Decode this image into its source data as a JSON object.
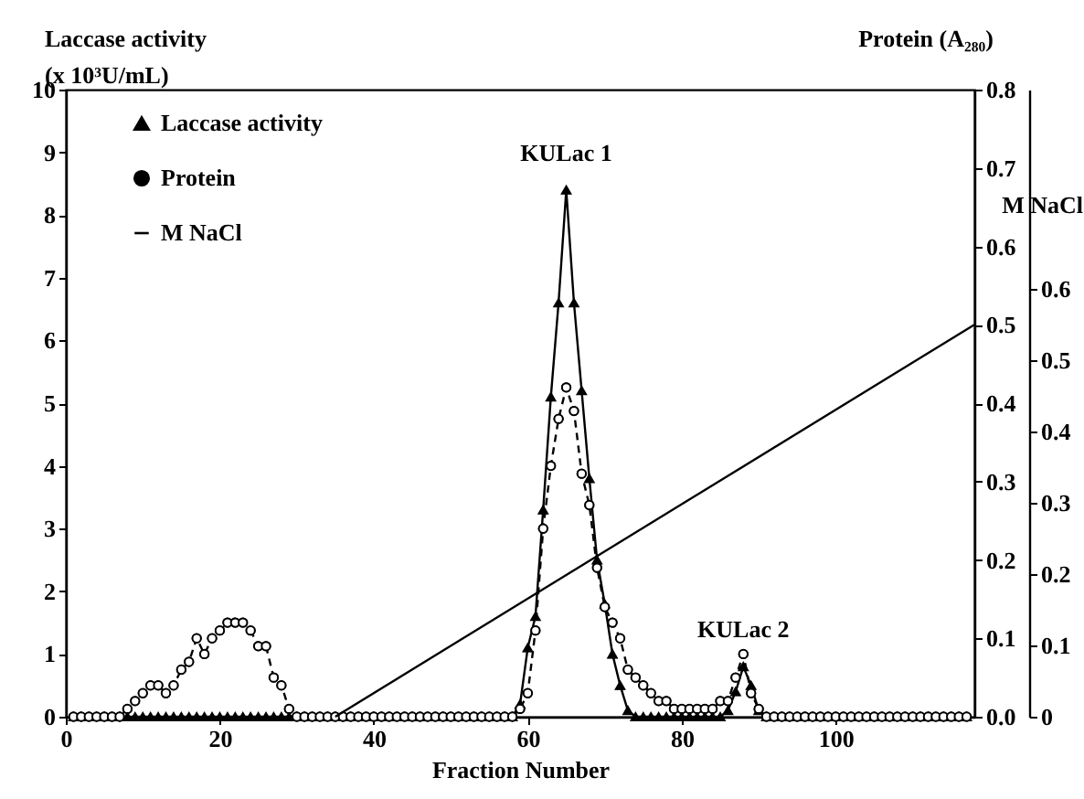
{
  "chart_data": {
    "type": "line",
    "xlabel": "Fraction Number",
    "ylabel": "Laccase activity\n(x 10³U/mL)",
    "y2label": "Protein (A₂₈₀)",
    "y3label": "M  NaCl",
    "xlim": [
      0,
      118
    ],
    "xticks": [
      0,
      20,
      40,
      60,
      80,
      100
    ],
    "ylim": [
      0,
      10
    ],
    "yticks": [
      0,
      1,
      2,
      3,
      4,
      5,
      6,
      7,
      8,
      9,
      10
    ],
    "y2lim": [
      0,
      0.8
    ],
    "y2ticks": [
      {
        "value": 0,
        "label": "0.0"
      },
      0.1,
      0.2,
      0.3,
      0.4,
      0.5,
      0.6,
      0.7,
      0.8
    ],
    "y3lim": [
      0,
      0.88
    ],
    "y3ticks": [
      0,
      0.1,
      0.2,
      0.3,
      0.4,
      0.5,
      0.6
    ],
    "grid": false,
    "legend": "top left",
    "annotations": [
      {
        "text": "KULac 1",
        "x": 65,
        "y": 8.4
      },
      {
        "text": "KULac 2",
        "x": 88,
        "y": 0.8
      }
    ],
    "x": [
      1,
      2,
      3,
      4,
      5,
      6,
      7,
      8,
      9,
      10,
      11,
      12,
      13,
      14,
      15,
      16,
      17,
      18,
      19,
      20,
      21,
      22,
      23,
      24,
      25,
      26,
      27,
      28,
      29,
      30,
      31,
      32,
      33,
      34,
      35,
      36,
      37,
      38,
      39,
      40,
      41,
      42,
      43,
      44,
      45,
      46,
      47,
      48,
      49,
      50,
      51,
      52,
      53,
      54,
      55,
      56,
      57,
      58,
      59,
      60,
      61,
      62,
      63,
      64,
      65,
      66,
      67,
      68,
      69,
      70,
      71,
      72,
      73,
      74,
      75,
      76,
      77,
      78,
      79,
      80,
      81,
      82,
      83,
      84,
      85,
      86,
      87,
      88,
      89,
      90,
      91,
      92,
      93,
      94,
      95,
      96,
      97,
      98,
      99,
      100,
      101,
      102,
      103,
      104,
      105,
      106,
      107,
      108,
      109,
      110,
      111,
      112,
      113,
      114,
      115,
      116,
      117
    ],
    "series": [
      {
        "name": "Laccase activity",
        "color": "#000000",
        "marker": "triangle",
        "line_style": "solid",
        "axis": "y",
        "values": [
          0,
          0,
          0,
          0,
          0,
          0,
          0,
          0,
          0,
          0,
          0,
          0,
          0,
          0,
          0,
          0,
          0,
          0,
          0,
          0,
          0,
          0,
          0,
          0,
          0,
          0,
          0,
          0,
          0,
          0,
          0,
          0,
          0,
          0,
          0,
          0,
          0,
          0,
          0,
          0,
          0,
          0,
          0,
          0,
          0,
          0,
          0,
          0,
          0,
          0,
          0,
          0,
          0,
          0,
          0,
          0,
          0,
          0,
          0.2,
          1.1,
          1.6,
          3.3,
          5.1,
          6.6,
          8.4,
          6.6,
          5.2,
          3.8,
          2.5,
          1.8,
          1.0,
          0.5,
          0.1,
          0,
          0,
          0,
          0,
          0,
          0,
          0,
          0,
          0,
          0,
          0,
          0,
          0.1,
          0.4,
          0.8,
          0.5,
          0.1,
          0,
          0,
          0,
          0,
          0,
          0,
          0,
          0,
          0,
          0,
          0,
          0,
          0,
          0,
          0,
          0,
          0,
          0,
          0,
          0,
          0,
          0,
          0,
          0,
          0,
          0,
          0
        ]
      },
      {
        "name": "Protein",
        "color": "#000000",
        "marker": "circle",
        "line_style": "dashed",
        "axis": "y2",
        "values": [
          0,
          0,
          0,
          0,
          0,
          0,
          0,
          0.01,
          0.02,
          0.03,
          0.04,
          0.04,
          0.03,
          0.04,
          0.06,
          0.07,
          0.1,
          0.08,
          0.1,
          0.11,
          0.12,
          0.12,
          0.12,
          0.11,
          0.09,
          0.09,
          0.05,
          0.04,
          0.01,
          0,
          0,
          0,
          0,
          0,
          0,
          0,
          0,
          0,
          0,
          0,
          0,
          0,
          0,
          0,
          0,
          0,
          0,
          0,
          0,
          0,
          0,
          0,
          0,
          0,
          0,
          0,
          0,
          0,
          0.01,
          0.03,
          0.11,
          0.24,
          0.32,
          0.38,
          0.42,
          0.39,
          0.31,
          0.27,
          0.19,
          0.14,
          0.12,
          0.1,
          0.06,
          0.05,
          0.04,
          0.03,
          0.02,
          0.02,
          0.01,
          0.01,
          0.01,
          0.01,
          0.01,
          0.01,
          0.02,
          0.02,
          0.05,
          0.08,
          0.03,
          0.01,
          0,
          0,
          0,
          0,
          0,
          0,
          0,
          0,
          0,
          0,
          0,
          0,
          0,
          0,
          0,
          0,
          0,
          0,
          0,
          0,
          0,
          0,
          0,
          0,
          0,
          0,
          0
        ]
      },
      {
        "name": "M  NaCl",
        "color": "#000000",
        "line_style": "solid",
        "axis": "y3",
        "x": [
          35,
          118
        ],
        "values": [
          0,
          0.55
        ]
      }
    ]
  }
}
